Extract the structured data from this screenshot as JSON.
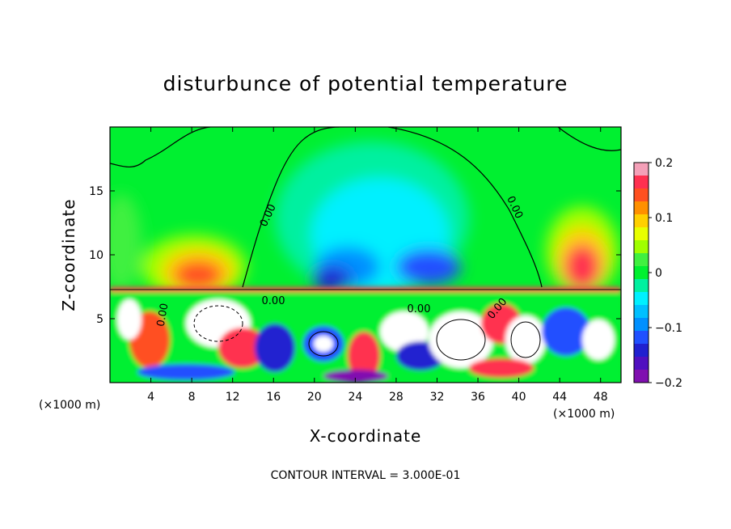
{
  "chart_data": {
    "type": "heatmap",
    "title": "disturbunce of potential temperature",
    "xlabel": "X-coordinate",
    "ylabel": "Z-coordinate",
    "x_unit_label": "(×1000 m)",
    "x_unit_label_right": "(×1000 m)",
    "xlim": [
      0,
      50
    ],
    "ylim": [
      0,
      20
    ],
    "x_ticks": [
      4,
      8,
      12,
      16,
      20,
      24,
      28,
      32,
      36,
      40,
      44,
      48
    ],
    "y_ticks": [
      5,
      10,
      15
    ],
    "colorbar": {
      "min": -0.2,
      "max": 0.2,
      "tick_values": [
        0.2,
        0.1,
        0,
        -0.1,
        -0.2
      ],
      "tick_labels": [
        "0.2",
        "0.1",
        "0",
        "−0.1",
        "−0.2"
      ],
      "colors": [
        "#f4a0b8",
        "#ff3050",
        "#ff5020",
        "#ff9000",
        "#ffd000",
        "#e8ff00",
        "#a0ff00",
        "#40f040",
        "#00f030",
        "#00f0a0",
        "#00f0ff",
        "#00c0ff",
        "#0090ff",
        "#2050ff",
        "#2020d0",
        "#5010c0",
        "#8010b0"
      ]
    },
    "contour_labels": [
      "0.00",
      "0.00",
      "0.00",
      "0.00",
      "0.00",
      "0.00"
    ],
    "footer": "CONTOUR INTERVAL = 3.000E-01"
  }
}
